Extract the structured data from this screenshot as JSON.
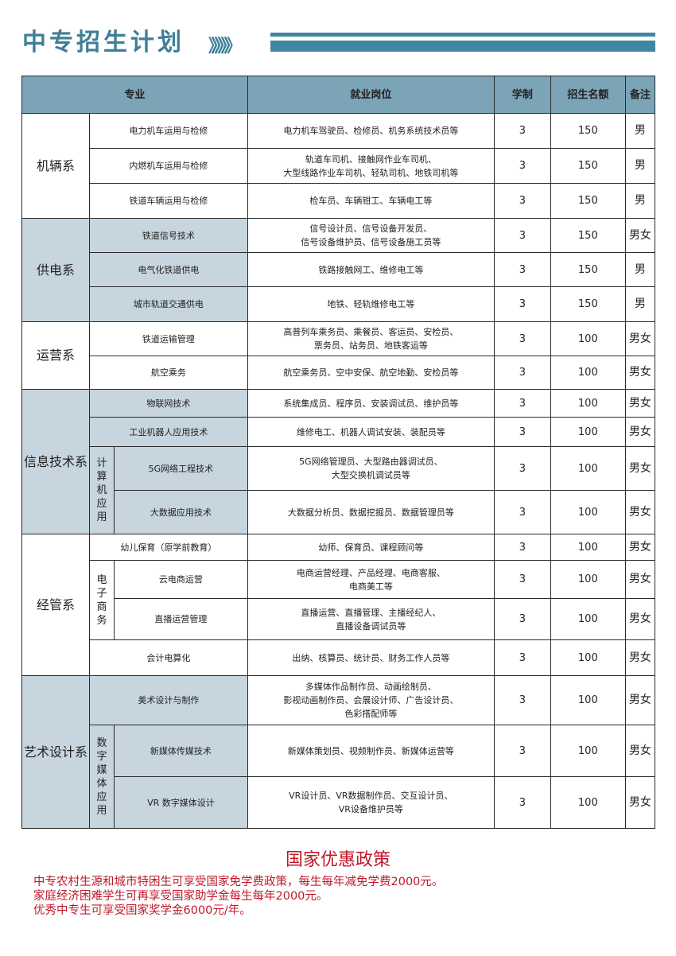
{
  "title": "中专招生计划",
  "chevrons": "》》》》》》",
  "headers": {
    "major": "专业",
    "jobs": "就业岗位",
    "years": "学制",
    "quota": "招生名额",
    "note": "备注"
  },
  "departments": [
    {
      "name": "机辆系",
      "shade": false,
      "rows": [
        {
          "major": "电力机车运用与检修",
          "jobs": "电力机车驾驶员、检修员、机务系统技术员等",
          "years": "3",
          "quota": "150",
          "note": "男"
        },
        {
          "major": "内燃机车运用与检修",
          "jobs": "轨道车司机、接触网作业车司机、\n大型线路作业车司机、轻轨司机、地铁司机等",
          "years": "3",
          "quota": "150",
          "note": "男"
        },
        {
          "major": "铁道车辆运用与检修",
          "jobs": "检车员、车辆钳工、车辆电工等",
          "years": "3",
          "quota": "150",
          "note": "男"
        }
      ]
    },
    {
      "name": "供电系",
      "shade": true,
      "rows": [
        {
          "major": "铁道信号技术",
          "jobs": "信号设计员、信号设备开发员、\n信号设备维护员、信号设备施工员等",
          "years": "3",
          "quota": "150",
          "note": "男女"
        },
        {
          "major": "电气化铁道供电",
          "jobs": "铁路接触网工、维修电工等",
          "years": "3",
          "quota": "150",
          "note": "男"
        },
        {
          "major": "城市轨道交通供电",
          "jobs": "地铁、轻轨维修电工等",
          "years": "3",
          "quota": "150",
          "note": "男"
        }
      ]
    },
    {
      "name": "运营系",
      "shade": false,
      "rows": [
        {
          "major": "铁道运输管理",
          "jobs": "高普列车乘务员、乘餐员、客运员、安检员、\n票务员、站务员、地铁客运等",
          "years": "3",
          "quota": "100",
          "note": "男女"
        },
        {
          "major": "航空乘务",
          "jobs": "航空乘务员、空中安保、航空地勤、安检员等",
          "years": "3",
          "quota": "100",
          "note": "男女"
        }
      ]
    },
    {
      "name": "信息技术系",
      "shade": true,
      "rows": [
        {
          "major": "物联网技术",
          "jobs": "系统集成员、程序员、安装调试员、维护员等",
          "years": "3",
          "quota": "100",
          "note": "男女"
        },
        {
          "major": "工业机器人应用技术",
          "jobs": "维修电工、机器人调试安装、装配员等",
          "years": "3",
          "quota": "100",
          "note": "男女"
        },
        {
          "group": "计算机应用",
          "groupSpan": 2,
          "major": "5G网络工程技术",
          "jobs": "5G网络管理员、大型路由器调试员、\n大型交换机调试员等",
          "years": "3",
          "quota": "100",
          "note": "男女"
        },
        {
          "inGroup": true,
          "major": "大数据应用技术",
          "jobs": "大数据分析员、数据挖掘员、数据管理员等",
          "years": "3",
          "quota": "100",
          "note": "男女"
        }
      ]
    },
    {
      "name": "经管系",
      "shade": false,
      "rows": [
        {
          "major": "幼儿保育（原学前教育）",
          "jobs": "幼师、保育员、课程顾问等",
          "years": "3",
          "quota": "100",
          "note": "男女"
        },
        {
          "group": "电子商务",
          "groupSpan": 2,
          "major": "云电商运营",
          "jobs": "电商运营经理、产品经理、电商客服、\n电商美工等",
          "years": "3",
          "quota": "100",
          "note": "男女"
        },
        {
          "inGroup": true,
          "major": "直播运营管理",
          "jobs": "直播运营、直播管理、主播经纪人、\n直播设备调试员等",
          "years": "3",
          "quota": "100",
          "note": "男女"
        },
        {
          "major": "会计电算化",
          "jobs": "出纳、核算员、统计员、财务工作人员等",
          "years": "3",
          "quota": "100",
          "note": "男女"
        }
      ]
    },
    {
      "name": "艺术设计系",
      "shade": true,
      "rows": [
        {
          "major": "美术设计与制作",
          "jobs": "多媒体作品制作员、动画绘制员、\n影视动画制作员、会展设计师、广告设计员、\n色彩搭配师等",
          "years": "3",
          "quota": "100",
          "note": "男女"
        },
        {
          "group": "数字媒体应用",
          "groupSpan": 2,
          "major": "新媒体传媒技术",
          "jobs": "新媒体策划员、视频制作员、新媒体运营等",
          "years": "3",
          "quota": "100",
          "note": "男女"
        },
        {
          "inGroup": true,
          "major": "VR 数字媒体设计",
          "jobs": "VR设计员、VR数据制作员、交互设计员、\nVR设备维护员等",
          "years": "3",
          "quota": "100",
          "note": "男女"
        }
      ]
    }
  ],
  "policy": {
    "title": "国家优惠政策",
    "lines": [
      "中专农村生源和城市特困生可享受国家免学费政策，每生每年减免学费2000元。",
      "家庭经济困难学生可再享受国家助学金每生每年2000元。",
      "优秀中专生可享受国家奖学金6000元/年。"
    ]
  },
  "colors": {
    "accent": "#3f7f98",
    "header": "#7ba4b7",
    "shade": "#c6d5de",
    "policy": "#c0182a"
  }
}
